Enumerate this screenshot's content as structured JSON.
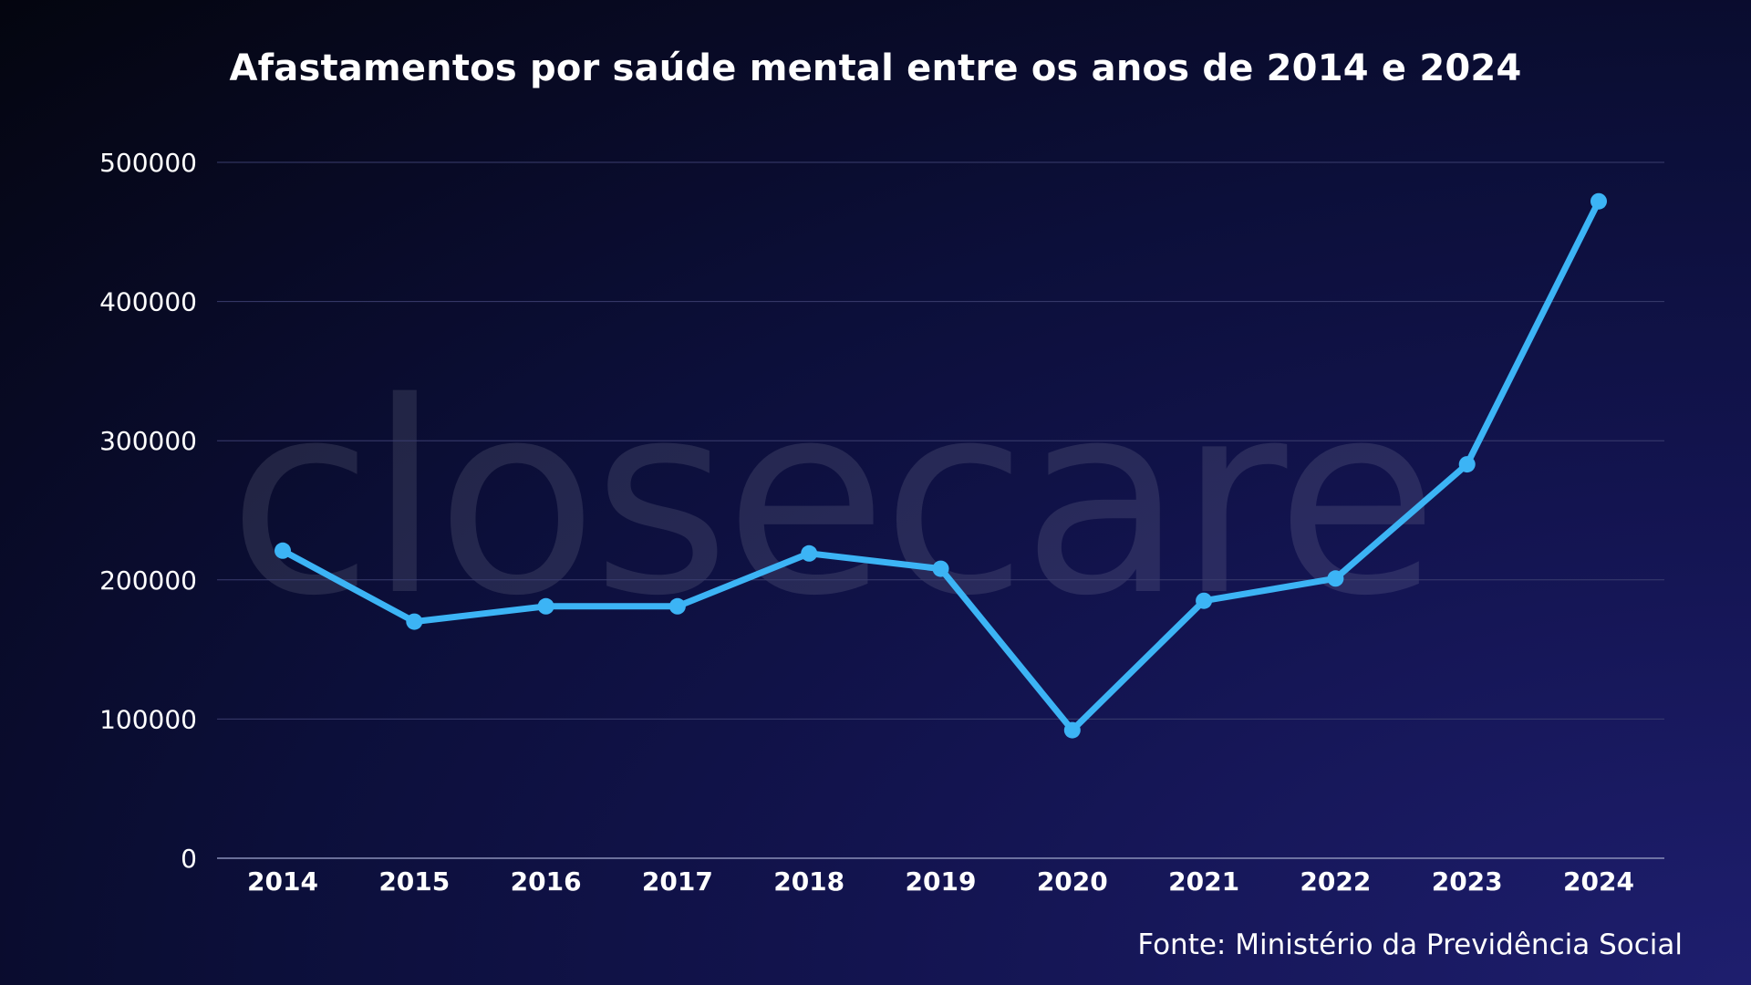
{
  "watermark_text": "closecare",
  "source": "Fonte: Ministério da Previdência Social",
  "colors": {
    "line": "#3cb4f5",
    "grid": "#3a3d6e",
    "axis": "#8a8fb8",
    "text": "#ffffff"
  },
  "chart_data": {
    "type": "line",
    "title": "Afastamentos por saúde mental entre os anos de 2014 e 2024",
    "xlabel": "",
    "ylabel": "",
    "categories": [
      "2014",
      "2015",
      "2016",
      "2017",
      "2018",
      "2019",
      "2020",
      "2021",
      "2022",
      "2023",
      "2024"
    ],
    "series": [
      {
        "values": [
          221000,
          170000,
          181000,
          181000,
          219000,
          208000,
          92000,
          185000,
          201000,
          283000,
          472000
        ]
      }
    ],
    "yticks": [
      "0",
      "100000",
      "200000",
      "300000",
      "400000",
      "500000"
    ],
    "ylim": [
      0,
      500000
    ],
    "grid": true,
    "legend": "none"
  }
}
